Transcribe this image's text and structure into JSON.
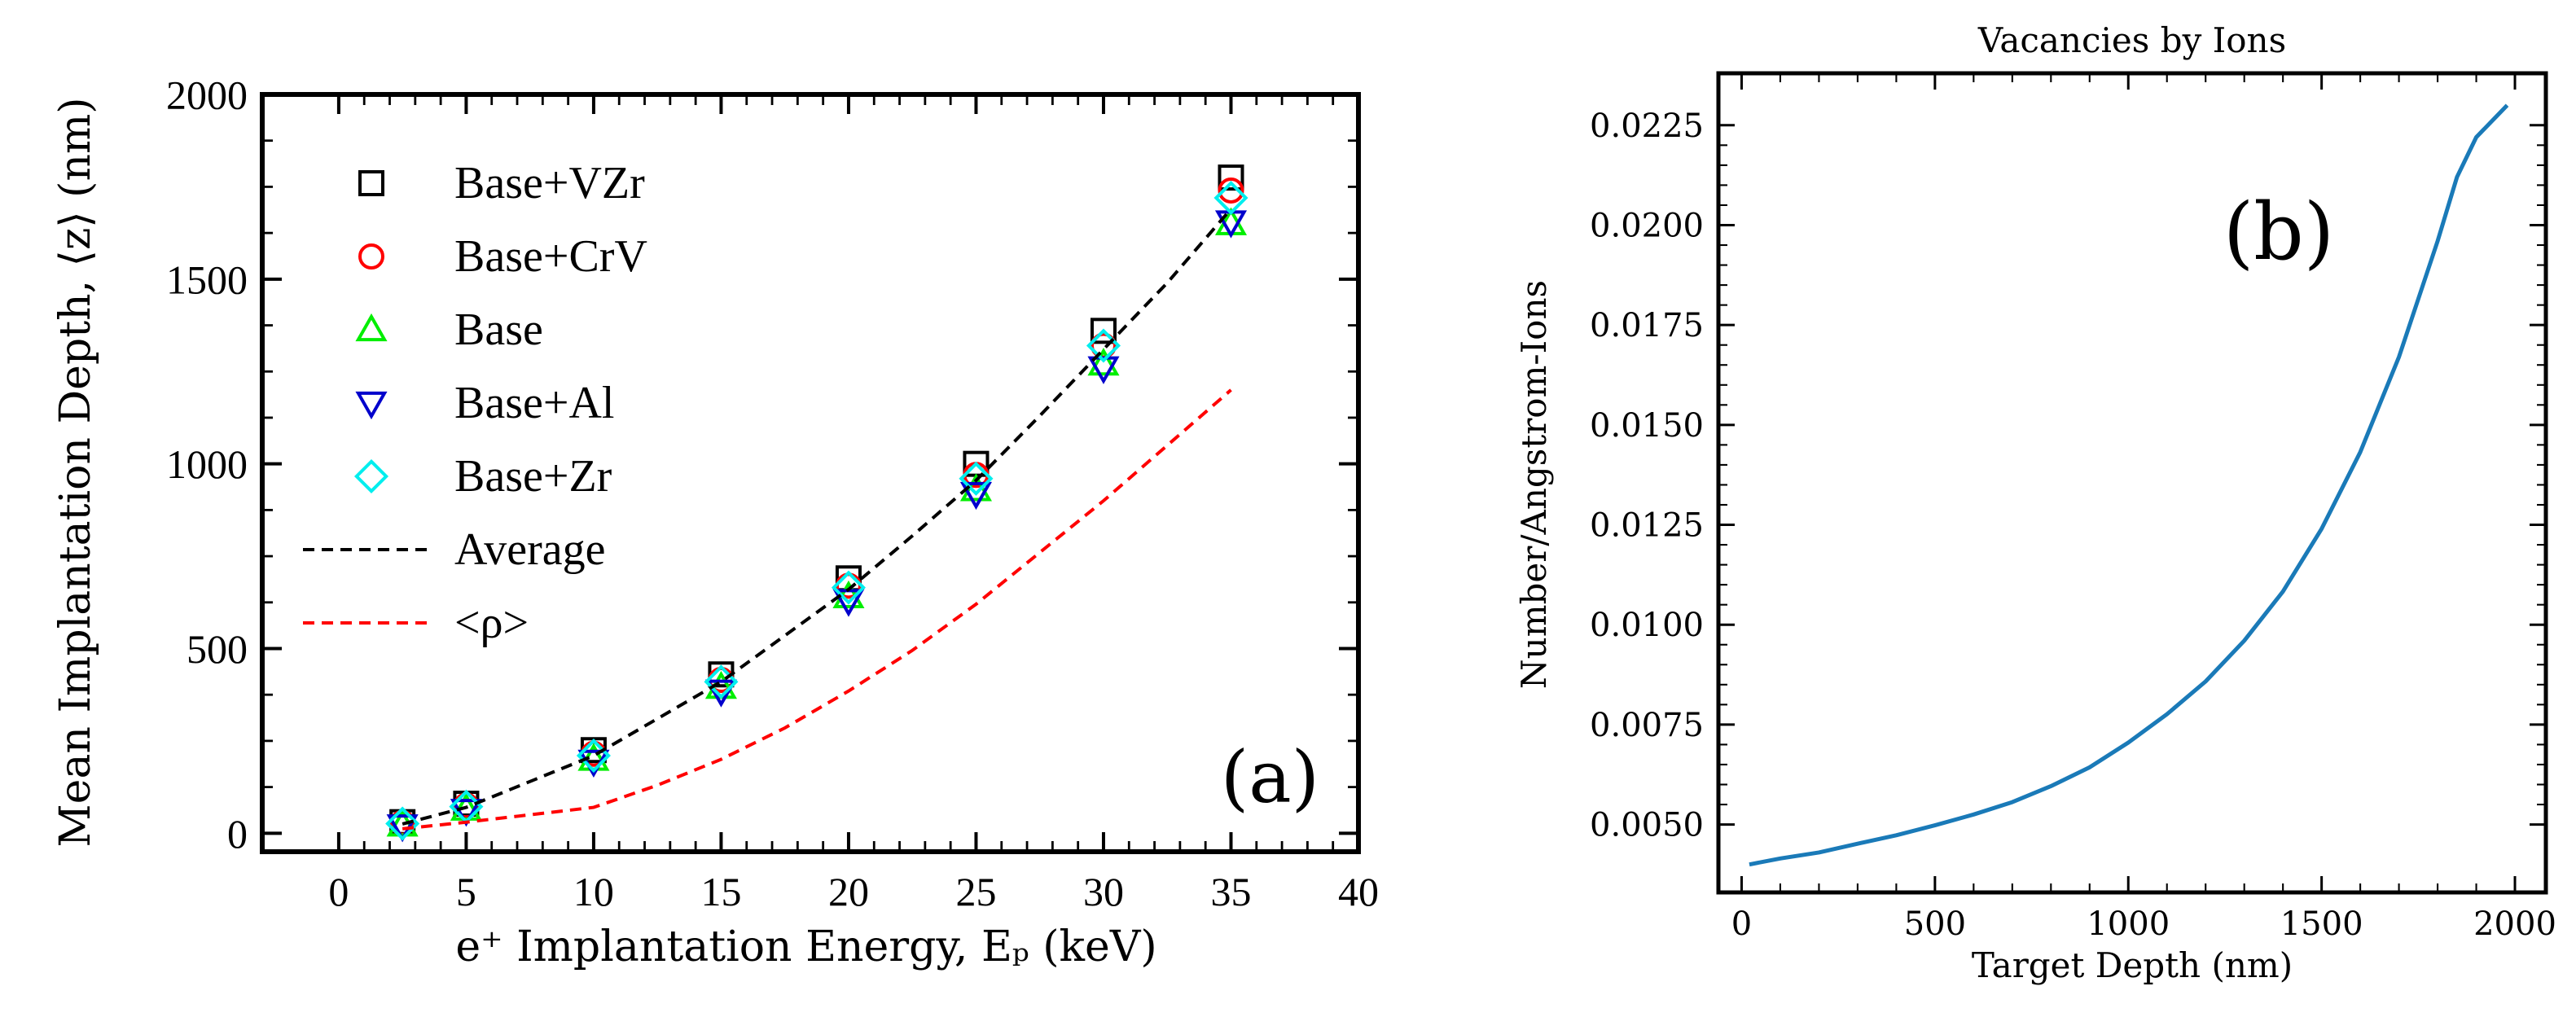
{
  "chart_data": [
    {
      "type": "scatter",
      "panel_label": "(a)",
      "title": "",
      "xlabel": "e⁺ Implantation Energy, Eₚ (keV)",
      "ylabel": "Mean Implantation Depth, ⟨z⟩ (nm)",
      "xlim": [
        -3,
        40
      ],
      "ylim": [
        -50,
        2000
      ],
      "xticks": [
        0,
        5,
        10,
        15,
        20,
        25,
        30,
        35,
        40
      ],
      "yticks": [
        0,
        500,
        1000,
        1500,
        2000
      ],
      "grid": false,
      "legend_position": "upper-left",
      "series": [
        {
          "name": "Base+VZr",
          "marker": "square",
          "color": "#000000",
          "x": [
            2.5,
            5,
            10,
            15,
            20,
            25,
            30,
            35
          ],
          "y": [
            30,
            80,
            225,
            430,
            690,
            1000,
            1360,
            1775
          ]
        },
        {
          "name": "Base+CrV",
          "marker": "circle",
          "color": "#ff0000",
          "x": [
            2.5,
            5,
            10,
            15,
            20,
            25,
            30,
            35
          ],
          "y": [
            28,
            75,
            215,
            415,
            670,
            970,
            1320,
            1740
          ]
        },
        {
          "name": "Base",
          "marker": "triangle-up",
          "color": "#00ee00",
          "x": [
            2.5,
            5,
            10,
            15,
            20,
            25,
            30,
            35
          ],
          "y": [
            22,
            65,
            200,
            395,
            640,
            930,
            1270,
            1650
          ]
        },
        {
          "name": "Base+Al",
          "marker": "triangle-down",
          "color": "#0000cc",
          "x": [
            2.5,
            5,
            10,
            15,
            20,
            25,
            30,
            35
          ],
          "y": [
            20,
            62,
            195,
            385,
            630,
            920,
            1260,
            1655
          ]
        },
        {
          "name": "Base+Zr",
          "marker": "diamond",
          "color": "#00eeee",
          "x": [
            2.5,
            5,
            10,
            15,
            20,
            25,
            30,
            35
          ],
          "y": [
            26,
            72,
            210,
            410,
            665,
            960,
            1320,
            1720
          ]
        },
        {
          "name": "Average",
          "marker": "dashed-line",
          "color": "#000000",
          "x": [
            2.5,
            5,
            7.5,
            10,
            12.5,
            15,
            17.5,
            20,
            22.5,
            25,
            27.5,
            30,
            32.5,
            35
          ],
          "y": [
            25,
            70,
            140,
            210,
            310,
            410,
            535,
            660,
            805,
            955,
            1130,
            1310,
            1490,
            1690
          ]
        },
        {
          "name": "<ρ>",
          "marker": "dashed-line",
          "color": "#ff0000",
          "x": [
            2.5,
            5,
            7.5,
            10,
            12.5,
            15,
            17.5,
            20,
            22.5,
            25,
            27.5,
            30,
            32.5,
            35
          ],
          "y": [
            12,
            30,
            50,
            70,
            130,
            200,
            285,
            385,
            495,
            620,
            760,
            900,
            1050,
            1200
          ]
        }
      ]
    },
    {
      "type": "line",
      "panel_label": "(b)",
      "title": "Vacancies by Ions",
      "xlabel": "Target Depth (nm)",
      "ylabel": "Number/Angstrom-Ions",
      "xlim": [
        -60,
        2080
      ],
      "ylim": [
        0.0033,
        0.0238
      ],
      "xticks": [
        0,
        500,
        1000,
        1500,
        2000
      ],
      "yticks": [
        0.005,
        0.0075,
        0.01,
        0.0125,
        0.015,
        0.0175,
        0.02,
        0.0225
      ],
      "ytick_labels": [
        "0.0050",
        "0.0075",
        "0.0100",
        "0.0125",
        "0.0150",
        "0.0175",
        "0.0200",
        "0.0225"
      ],
      "grid": false,
      "series": [
        {
          "name": "",
          "color": "#1a7ab8",
          "x": [
            20,
            100,
            200,
            300,
            400,
            500,
            600,
            700,
            800,
            900,
            1000,
            1100,
            1200,
            1300,
            1400,
            1500,
            1600,
            1700,
            1800,
            1850,
            1900,
            1950,
            1980
          ],
          "y": [
            0.004,
            0.00415,
            0.0043,
            0.00452,
            0.00473,
            0.00498,
            0.00525,
            0.00556,
            0.00596,
            0.00643,
            0.00705,
            0.00776,
            0.00858,
            0.0096,
            0.01083,
            0.0124,
            0.01432,
            0.0167,
            0.0196,
            0.0212,
            0.0222,
            0.0227,
            0.023
          ]
        }
      ]
    }
  ]
}
